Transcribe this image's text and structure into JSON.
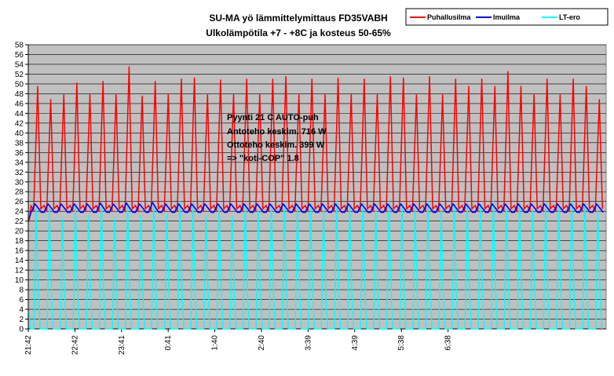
{
  "chart_data": {
    "type": "line",
    "title": "SU-MA yö lämmittelymittaus FD35VABH",
    "subtitle": "Ulkolämpötila +7 - +8C ja kosteus 50-65%",
    "xlabel": "",
    "ylabel": "",
    "ylim": [
      0,
      58
    ],
    "y_ticks": [
      0,
      2,
      4,
      6,
      8,
      10,
      12,
      14,
      16,
      18,
      20,
      22,
      24,
      26,
      28,
      30,
      32,
      34,
      36,
      38,
      40,
      42,
      44,
      46,
      48,
      50,
      52,
      54,
      56,
      58
    ],
    "x_ticks": [
      "21:42",
      "22:42",
      "23:41",
      "0:41",
      "1:40",
      "2:40",
      "3:39",
      "4:39",
      "5:38",
      "6:38"
    ],
    "grid": true,
    "plot_background": "#c0c0c0",
    "legend_position": "top-right",
    "annotations": [
      "Pyynti 21 C AUTO-puh",
      "Antoteho keskim. 716 W",
      "Ottoteho keskim. 399 W",
      "=> \"koti-COP\" 1.8"
    ],
    "cycle_count": 44,
    "series": [
      {
        "name": "Puhallusilma",
        "color": "#ff0000",
        "baseline": 24,
        "start_value": 22,
        "peaks": [
          49.5,
          46.8,
          47.8,
          50.2,
          47.8,
          50.5,
          47.8,
          53.5,
          47.5,
          50.5,
          47.8,
          51,
          51.2,
          47.8,
          50.8,
          47.8,
          51,
          47.8,
          51,
          51.5,
          47.8,
          51,
          47.8,
          51.2,
          47.8,
          51,
          47.8,
          51.5,
          51.2,
          47.8,
          51.5,
          47.8,
          51,
          49.5,
          51,
          49.5,
          52.5,
          49.5,
          47.8,
          51,
          47.8,
          51,
          49.5,
          46.8
        ]
      },
      {
        "name": "Imuilma",
        "color": "#0000ff",
        "baseline": 23.8,
        "start_value": 22.5,
        "peaks": [
          25.5,
          25.5,
          25.5,
          25.5,
          25.5,
          25.7,
          25.5,
          25.7,
          25.5,
          25.8,
          25.5,
          25.5,
          25.5,
          25.5,
          25.5,
          25.5,
          25.5,
          25.5,
          25.5,
          25.5,
          25.5,
          25.5,
          25.5,
          25.5,
          25.5,
          25.5,
          25.5,
          25.5,
          25.5,
          25.5,
          25.5,
          25.5,
          25.5,
          25.5,
          25.5,
          25.5,
          25.5,
          25.5,
          25.5,
          25.5,
          25.5,
          25.5,
          25.5,
          25.5
        ]
      },
      {
        "name": "LT-ero",
        "color": "#00ffff",
        "baseline": 0,
        "start_value": 3.5,
        "peaks": [
          24.5,
          24.5,
          22.5,
          25,
          23,
          25.5,
          22.5,
          25.5,
          23,
          25.5,
          23.5,
          26,
          25.5,
          23,
          25,
          23,
          25.5,
          24,
          25,
          25.5,
          25,
          25.5,
          24,
          26,
          25,
          25.5,
          24,
          26,
          25.5,
          24.5,
          26,
          24,
          25.5,
          25,
          25.5,
          26,
          24.5,
          25.5,
          24,
          25.5,
          24.5,
          26,
          25.5,
          24
        ]
      }
    ]
  }
}
